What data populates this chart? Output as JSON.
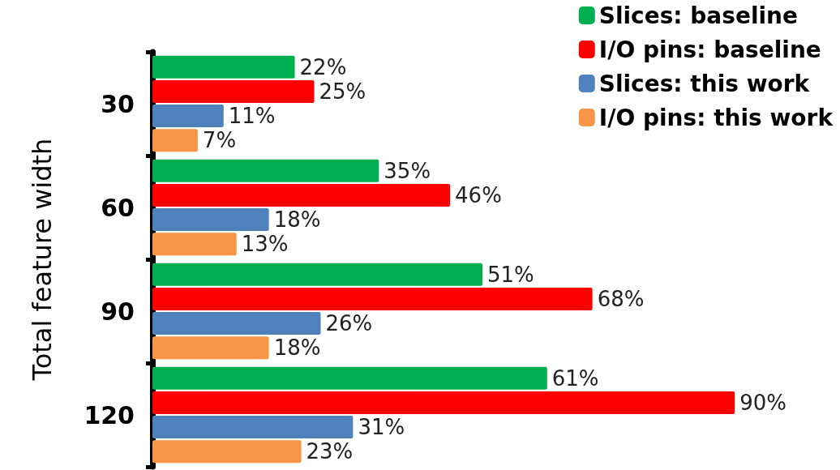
{
  "chart_data": {
    "type": "bar",
    "orientation": "horizontal",
    "ylabel": "Total feature width",
    "categories": [
      "30",
      "60",
      "90",
      "120"
    ],
    "series": [
      {
        "name": "Slices: baseline",
        "color": "#00b050",
        "values": [
          22,
          35,
          51,
          61
        ],
        "value_labels": [
          "22%",
          "35%",
          "51%",
          "61%"
        ]
      },
      {
        "name": "I/O pins: baseline",
        "color": "#ff0000",
        "values": [
          25,
          46,
          68,
          90
        ],
        "value_labels": [
          "25%",
          "46%",
          "68%",
          "90%"
        ]
      },
      {
        "name": "Slices: this work",
        "color": "#4f81bd",
        "values": [
          11,
          18,
          26,
          31
        ],
        "value_labels": [
          "11%",
          "18%",
          "26%",
          "31%"
        ]
      },
      {
        "name": "I/O pins: this work",
        "color": "#f79646",
        "values": [
          7,
          13,
          18,
          23
        ],
        "value_labels": [
          "7%",
          "13%",
          "18%",
          "23%"
        ]
      }
    ],
    "legend": "top right"
  }
}
